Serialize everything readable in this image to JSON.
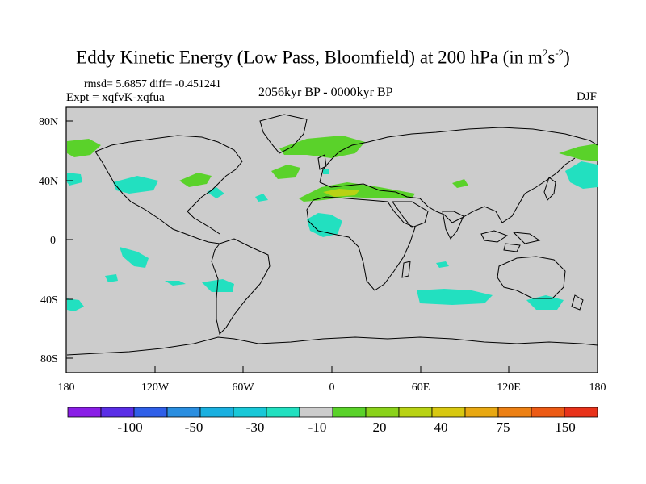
{
  "title": {
    "main": "Eddy Kinetic Energy (Low Pass, Bloomfield) at 200 hPa (in m",
    "sup1": "2",
    "mid": "s",
    "sup2": "-2",
    "close": ")"
  },
  "stats": "rmsd= 5.6857 diff= -0.451241",
  "expt": "Expt = xqfvK-xqfua",
  "period": "2056kyr BP - 0000kyr BP",
  "season": "DJF",
  "axes": {
    "y_ticks": [
      "80N",
      "40N",
      "0",
      "40S",
      "80S"
    ],
    "x_ticks": [
      "180",
      "120W",
      "60W",
      "0",
      "60E",
      "120E",
      "180"
    ]
  },
  "colorbar": {
    "colors": [
      "#8a1ee6",
      "#5a2ee6",
      "#2f5fe8",
      "#2a8ee0",
      "#1ab0e0",
      "#19c8d8",
      "#22e0c0",
      "#cccccc",
      "#5ad22a",
      "#8ad21a",
      "#b8d214",
      "#d8c810",
      "#e8a812",
      "#ec8014",
      "#ec5a14",
      "#e8321a"
    ],
    "labels": [
      "-100",
      "-50",
      "-30",
      "-10",
      "20",
      "40",
      "75",
      "150"
    ]
  },
  "colors": {
    "ocean_land": "#cccccc",
    "positive": "#5ad22a",
    "negative": "#22e0c0",
    "high_positive": "#b8d214"
  }
}
